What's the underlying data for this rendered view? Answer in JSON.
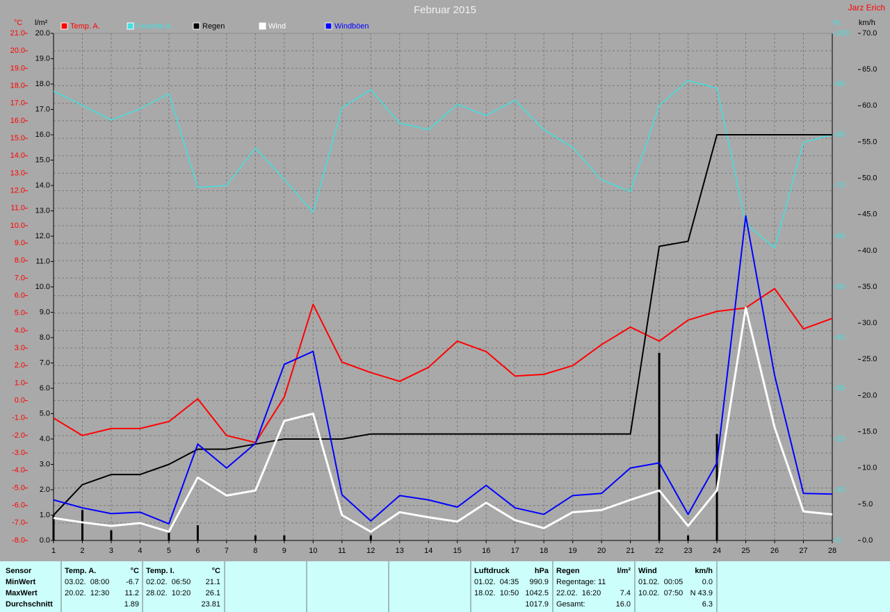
{
  "chart_data": {
    "type": "line",
    "title": "Februar 2015",
    "annotation": "Jarz Erich",
    "x": [
      1,
      2,
      3,
      4,
      5,
      6,
      7,
      8,
      9,
      10,
      11,
      12,
      13,
      14,
      15,
      16,
      17,
      18,
      19,
      20,
      21,
      22,
      23,
      24,
      25,
      26,
      27,
      28
    ],
    "xlim": [
      1,
      28
    ],
    "xticks": [
      1,
      2,
      3,
      4,
      5,
      6,
      7,
      8,
      9,
      10,
      11,
      12,
      13,
      14,
      15,
      16,
      17,
      18,
      19,
      20,
      21,
      22,
      23,
      24,
      25,
      26,
      27,
      28
    ],
    "grid": true,
    "y_label": "°C",
    "ylim": [
      -8,
      21
    ],
    "yticks": [
      {
        "value": -8,
        "label": "-8.0"
      },
      {
        "value": -7,
        "label": "-7.0"
      },
      {
        "value": -6,
        "label": "-6.0"
      },
      {
        "value": -5,
        "label": "-5.0"
      },
      {
        "value": -4,
        "label": "-4.0"
      },
      {
        "value": -3,
        "label": "-3.0"
      },
      {
        "value": -2,
        "label": "-2.0"
      },
      {
        "value": -1,
        "label": "-1.0"
      },
      {
        "value": 0,
        "label": "0.0"
      },
      {
        "value": 1,
        "label": "1.0"
      },
      {
        "value": 2,
        "label": "2.0"
      },
      {
        "value": 3,
        "label": "3.0"
      },
      {
        "value": 4,
        "label": "4.0"
      },
      {
        "value": 5,
        "label": "5.0"
      },
      {
        "value": 6,
        "label": "6.0"
      },
      {
        "value": 7,
        "label": "7.0"
      },
      {
        "value": 8,
        "label": "8.0"
      },
      {
        "value": 9,
        "label": "9.0"
      },
      {
        "value": 10,
        "label": "10.0"
      },
      {
        "value": 11,
        "label": "11.0"
      },
      {
        "value": 12,
        "label": "12.0"
      },
      {
        "value": 13,
        "label": "13.0"
      },
      {
        "value": 14,
        "label": "14.0"
      },
      {
        "value": 15,
        "label": "15.0"
      },
      {
        "value": 16,
        "label": "16.0"
      },
      {
        "value": 17,
        "label": "17.0"
      },
      {
        "value": 18,
        "label": "18.0"
      },
      {
        "value": 19,
        "label": "19.0"
      },
      {
        "value": 20,
        "label": "20.0"
      },
      {
        "value": 21,
        "label": "21.0"
      }
    ],
    "y2_label": "l/m²",
    "y2lim": [
      0,
      20
    ],
    "y2ticks": [
      {
        "value": 0,
        "label": "0.0"
      },
      {
        "value": 1,
        "label": "1.0"
      },
      {
        "value": 2,
        "label": "2.0"
      },
      {
        "value": 3,
        "label": "3.0"
      },
      {
        "value": 4,
        "label": "4.0"
      },
      {
        "value": 5,
        "label": "5.0"
      },
      {
        "value": 6,
        "label": "6.0"
      },
      {
        "value": 7,
        "label": "7.0"
      },
      {
        "value": 8,
        "label": "8.0"
      },
      {
        "value": 9,
        "label": "9.0"
      },
      {
        "value": 10,
        "label": "10.0"
      },
      {
        "value": 11,
        "label": "11.0"
      },
      {
        "value": 12,
        "label": "12.0"
      },
      {
        "value": 13,
        "label": "13.0"
      },
      {
        "value": 14,
        "label": "14.0"
      },
      {
        "value": 15,
        "label": "15.0"
      },
      {
        "value": 16,
        "label": "16.0"
      },
      {
        "value": 17,
        "label": "17.0"
      },
      {
        "value": 18,
        "label": "18.0"
      },
      {
        "value": 19,
        "label": "19.0"
      },
      {
        "value": 20,
        "label": "20.0"
      }
    ],
    "y3_label": "%",
    "y3lim": [
      0,
      100
    ],
    "y3ticks": [
      0,
      10,
      20,
      30,
      40,
      50,
      60,
      70,
      80,
      90,
      100
    ],
    "y4_label": "km/h",
    "y4lim": [
      0,
      70
    ],
    "y4ticks": [
      {
        "value": 0,
        "label": "0.0"
      },
      {
        "value": 5,
        "label": "5.0"
      },
      {
        "value": 10,
        "label": "10.0"
      },
      {
        "value": 15,
        "label": "15.0"
      },
      {
        "value": 20,
        "label": "20.0"
      },
      {
        "value": 25,
        "label": "25.0"
      },
      {
        "value": 30,
        "label": "30.0"
      },
      {
        "value": 35,
        "label": "35.0"
      },
      {
        "value": 40,
        "label": "40.0"
      },
      {
        "value": 45,
        "label": "45.0"
      },
      {
        "value": 50,
        "label": "50.0"
      },
      {
        "value": 55,
        "label": "55.0"
      },
      {
        "value": 60,
        "label": "60.0"
      },
      {
        "value": 65,
        "label": "65.0"
      },
      {
        "value": 70,
        "label": "70.0"
      }
    ],
    "series": [
      {
        "name": "Temp. A.",
        "color": "#ff0000",
        "axis": "y",
        "type": "line",
        "width": 2,
        "values": [
          -1.0,
          -2.0,
          -1.6,
          -1.6,
          -1.2,
          0.1,
          -2.0,
          -2.4,
          0.2,
          5.5,
          2.2,
          1.6,
          1.1,
          1.9,
          3.4,
          2.8,
          1.4,
          1.5,
          2.0,
          3.2,
          4.2,
          3.4,
          4.6,
          5.1,
          5.3,
          6.4,
          4.1,
          4.7
        ]
      },
      {
        "name": "Feuchte A.",
        "color": "#40e0e0",
        "axis": "y3",
        "type": "line",
        "width": 1.5,
        "values": [
          88.6,
          85.8,
          82.9,
          85.1,
          88.1,
          69.6,
          70.0,
          77.4,
          71.2,
          64.7,
          85.3,
          88.9,
          82.3,
          81.0,
          86.0,
          83.8,
          86.8,
          81.0,
          77.5,
          71.1,
          68.8,
          85.8,
          90.7,
          89.2,
          62.5,
          57.7,
          78.5,
          80.0
        ]
      },
      {
        "name": "Regen",
        "color": "#000000",
        "axis": "y2",
        "type": "line",
        "width": 2,
        "values": [
          1.0,
          2.2,
          2.6,
          2.6,
          3.0,
          3.6,
          3.6,
          3.8,
          4.0,
          4.0,
          4.0,
          4.2,
          4.2,
          4.2,
          4.2,
          4.2,
          4.2,
          4.2,
          4.2,
          4.2,
          4.2,
          11.6,
          11.8,
          16.0,
          16.0,
          16.0,
          16.0,
          16.0
        ]
      },
      {
        "color": "#000000",
        "axis": "y2",
        "type": "bar",
        "values": [
          1.0,
          1.2,
          0.4,
          0,
          0.4,
          0.6,
          0,
          0.2,
          0.2,
          0,
          0,
          0.2,
          0,
          0,
          0,
          0,
          0,
          0,
          0,
          0,
          0,
          7.4,
          0.2,
          4.2,
          0,
          0,
          0,
          0
        ]
      },
      {
        "name": "Wind",
        "color": "#ffffff",
        "axis": "y4",
        "type": "line",
        "width": 3,
        "values": [
          3.1,
          2.5,
          2.0,
          2.4,
          1.2,
          8.7,
          6.2,
          6.9,
          16.5,
          17.5,
          3.5,
          1.2,
          3.9,
          3.2,
          2.6,
          5.2,
          2.8,
          1.7,
          3.9,
          4.2,
          5.6,
          6.9,
          2.0,
          6.9,
          32.1,
          15.6,
          4.0,
          3.6
        ]
      },
      {
        "name": "Windböen",
        "color": "#0000ff",
        "axis": "y4",
        "type": "line",
        "width": 2,
        "values": [
          5.6,
          4.5,
          3.7,
          3.9,
          2.3,
          13.3,
          10.0,
          13.4,
          24.3,
          26.1,
          6.3,
          2.7,
          6.2,
          5.6,
          4.6,
          7.6,
          4.5,
          3.6,
          6.2,
          6.5,
          10.0,
          10.7,
          3.6,
          10.7,
          44.8,
          22.8,
          6.5,
          6.4
        ]
      }
    ]
  },
  "table": {
    "row_labels": [
      "Sensor",
      "MinWert",
      "MaxWert",
      "Durchschnitt"
    ],
    "columns": [
      {
        "name": "Temp. A.",
        "unit": "°C",
        "rows": [
          {
            "left": "03.02.  08:00",
            "right": "-6.7"
          },
          {
            "left": "20.02.  12:30",
            "right": "11.2"
          },
          {
            "right": "1.89"
          }
        ]
      },
      {
        "name": "Temp. I.",
        "unit": "°C",
        "rows": [
          {
            "left": "02.02.  06:50",
            "right": "21.1"
          },
          {
            "left": "28.02.  10:20",
            "right": "26.1"
          },
          {
            "right": "23.81"
          }
        ]
      },
      {
        "name": "Luftdruck",
        "unit": "hPa",
        "rows": [
          {
            "left": "01.02.  04:35",
            "right": "990.9"
          },
          {
            "left": "18.02.  10:50",
            "right": "1042.5"
          },
          {
            "right": "1017.9"
          }
        ]
      },
      {
        "name": "Regen",
        "unit": "l/m²",
        "rows": [
          {
            "left": "Regentage: 11"
          },
          {
            "left": "22.02.  16:20",
            "right": "7.4"
          },
          {
            "left": "Gesamt:",
            "right": "16.0"
          }
        ]
      },
      {
        "name": "Wind",
        "unit": "km/h",
        "rows": [
          {
            "left": "01.02.  00:05",
            "right": "0.0"
          },
          {
            "left": "10.02.  07:50",
            "right": "N 43.9"
          },
          {
            "right": "6.3"
          }
        ]
      }
    ]
  }
}
